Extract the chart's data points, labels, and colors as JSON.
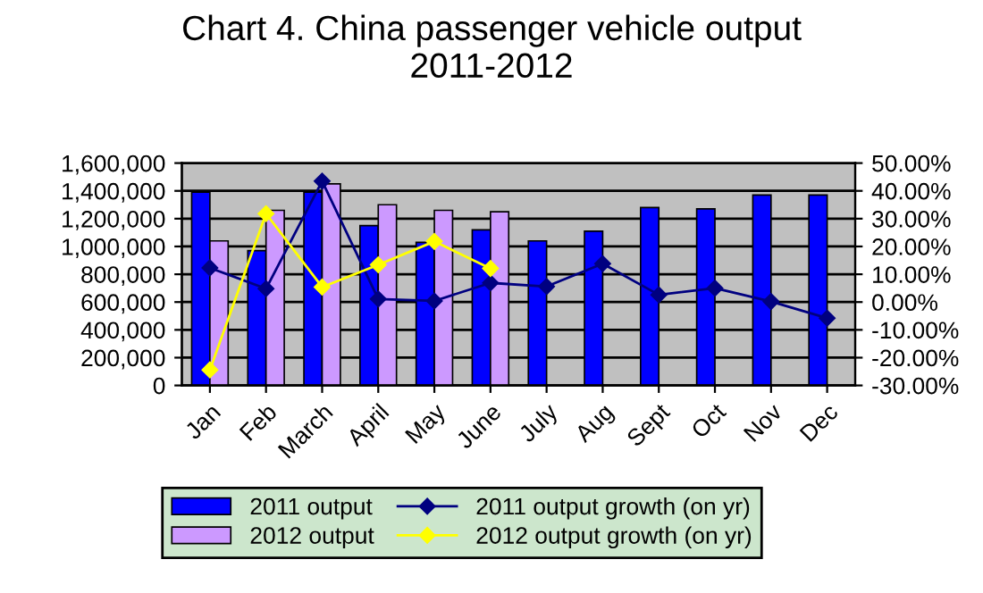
{
  "chart_data": {
    "type": "bar",
    "title": "Chart 4. China passenger vehicle output\n2011-2012",
    "categories": [
      "Jan",
      "Feb",
      "March",
      "April",
      "May",
      "June",
      "July",
      "Aug",
      "Sept",
      "Oct",
      "Nov",
      "Dec"
    ],
    "series": [
      {
        "name": "2011 output",
        "color": "#0000ff",
        "values": [
          1390000,
          970000,
          1390000,
          1150000,
          1030000,
          1120000,
          1040000,
          1110000,
          1280000,
          1270000,
          1370000,
          1370000
        ]
      },
      {
        "name": "2012 output",
        "color": "#cc99ff",
        "values": [
          1040000,
          1260000,
          1450000,
          1300000,
          1260000,
          1250000,
          null,
          null,
          null,
          null,
          null,
          null
        ]
      },
      {
        "name": "2011 output growth (on yr)",
        "type": "line",
        "axis": "y2",
        "color": "#000080",
        "marker": "diamond",
        "values": [
          12.3,
          4.8,
          43.5,
          1.1,
          0.4,
          6.9,
          5.6,
          13.8,
          2.6,
          5.0,
          0.2,
          -5.8
        ]
      },
      {
        "name": "2012 output growth (on yr)",
        "type": "line",
        "axis": "y2",
        "color": "#ffff00",
        "marker": "diamond",
        "values": [
          -24.4,
          31.8,
          5.4,
          13.4,
          21.8,
          12.1,
          null,
          null,
          null,
          null,
          null,
          null
        ]
      }
    ],
    "ylim": [
      0,
      1600000
    ],
    "yticks": [
      0,
      {
        "value": 200000,
        "label": "200,000"
      },
      {
        "value": 400000,
        "label": "400,000"
      },
      {
        "value": 600000,
        "label": "600,000"
      },
      {
        "value": 800000,
        "label": "800,000"
      },
      {
        "value": 1000000,
        "label": "1,000,000"
      },
      {
        "value": 1200000,
        "label": "1,200,000"
      },
      {
        "value": 1400000,
        "label": "1,400,000"
      },
      {
        "value": 1600000,
        "label": "1,600,000"
      }
    ],
    "y2lim": [
      -30,
      50
    ],
    "y2ticks": [
      {
        "value": -30,
        "label": "-30.00%"
      },
      {
        "value": -20,
        "label": "-20.00%"
      },
      {
        "value": -10,
        "label": "-10.00%"
      },
      {
        "value": 0,
        "label": "0.00%"
      },
      {
        "value": 10,
        "label": "10.00%"
      },
      {
        "value": 20,
        "label": "20.00%"
      },
      {
        "value": 30,
        "label": "30.00%"
      },
      {
        "value": 40,
        "label": "40.00%"
      },
      {
        "value": 50,
        "label": "50.00%"
      }
    ],
    "grid": "y",
    "legend": "bottom"
  }
}
